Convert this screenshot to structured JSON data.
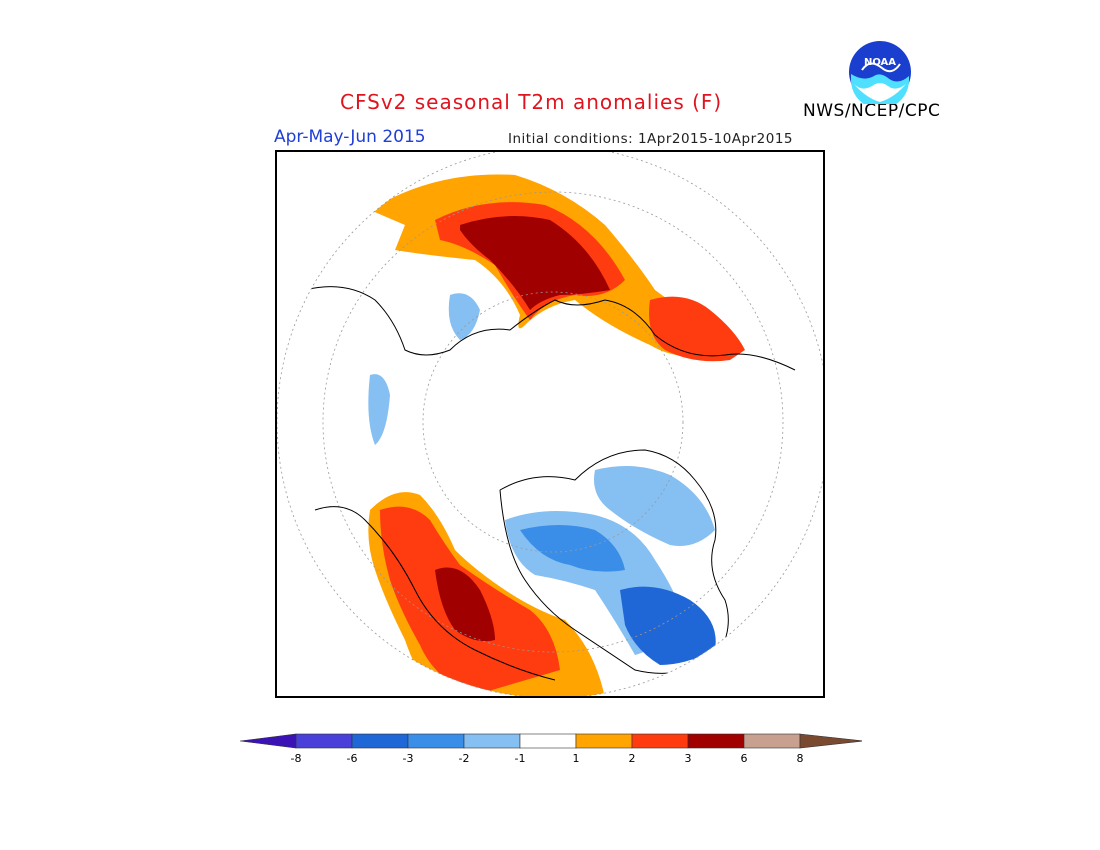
{
  "title": "CFSv2 seasonal T2m anomalies (F)",
  "season": "Apr-May-Jun 2015",
  "initial_conditions": "Initial conditions: 1Apr2015-10Apr2015",
  "agency": "NWS/NCEP/CPC",
  "logo": {
    "text": "NOAA",
    "icon": "noaa-logo-icon"
  },
  "colorbar": {
    "labels": [
      "-8",
      "-6",
      "-3",
      "-2",
      "-1",
      "1",
      "2",
      "3",
      "6",
      "8"
    ],
    "colors": [
      "#3b12b5",
      "#4a3fd8",
      "#1f66d6",
      "#3a8ee8",
      "#86bff2",
      "#ffffff",
      "#ffa400",
      "#ff3c10",
      "#a00000",
      "#c8a090",
      "#7a4a30"
    ]
  }
}
